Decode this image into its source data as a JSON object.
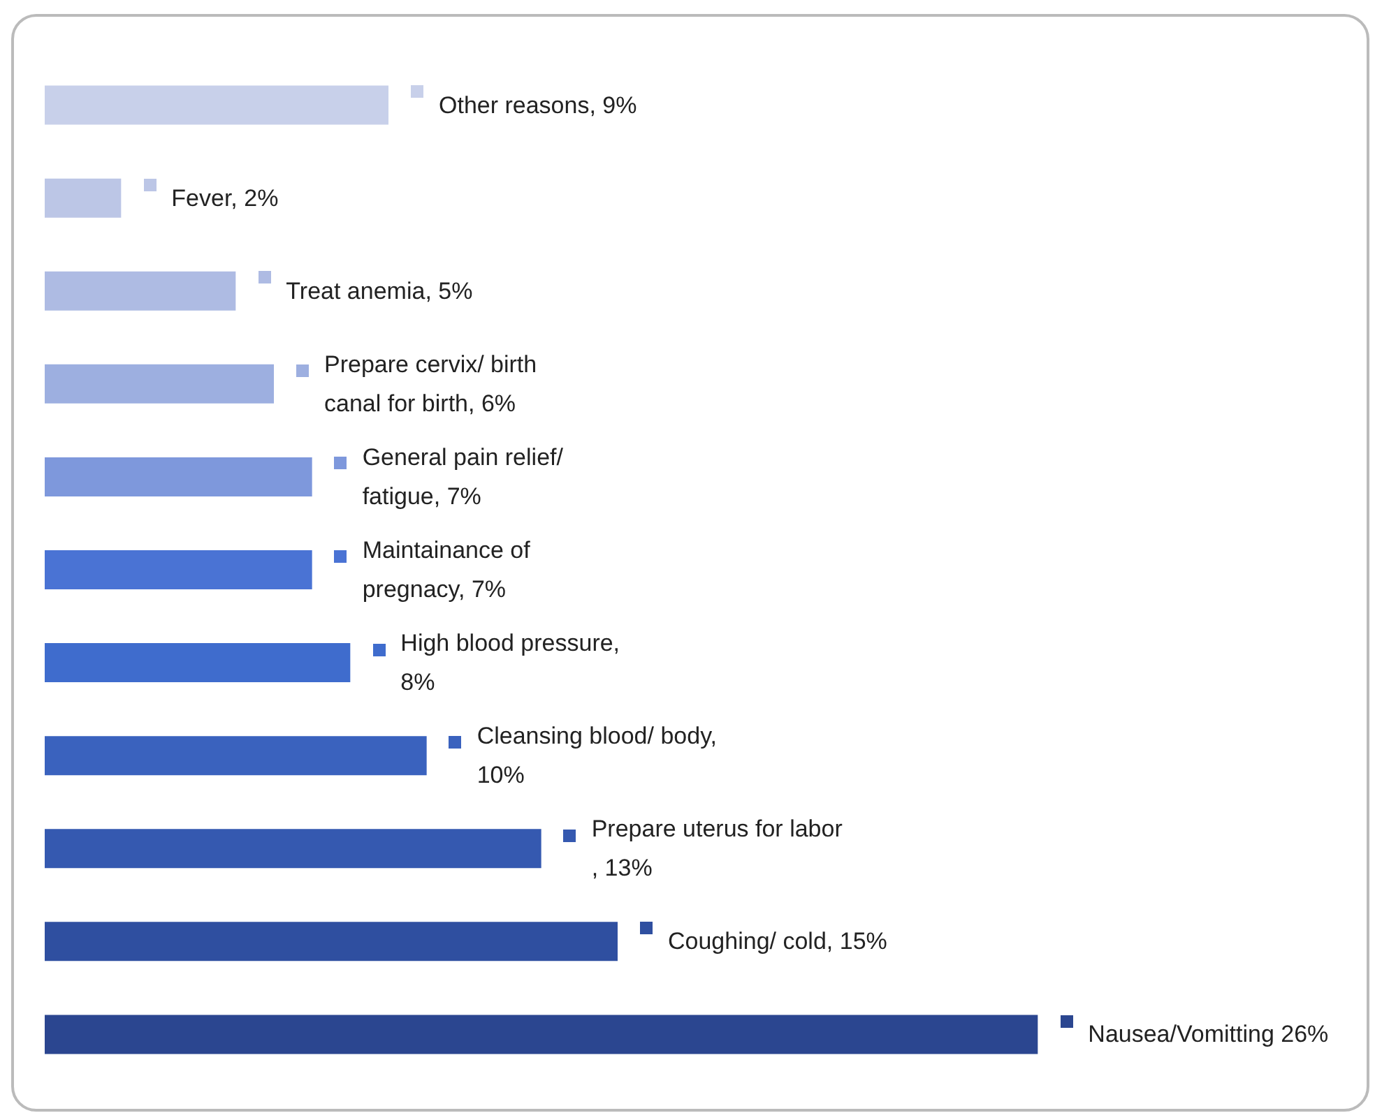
{
  "chart_data": {
    "type": "bar",
    "orientation": "horizontal",
    "categories": [
      null,
      null,
      null,
      null,
      null,
      null,
      null,
      null,
      null,
      null,
      null
    ],
    "values": [
      9,
      2,
      5,
      6,
      7,
      7,
      8,
      10,
      13,
      15,
      26
    ],
    "value_labels": [
      "Other reasons, 9%",
      "Fever, 2%",
      "Treat anemia, 5%",
      "Prepare cervix/ birth canal for birth, 6%",
      "General pain relief/fatigue, 7%",
      "Maintainance of pregnacy, 7%",
      "High blood pressure, 8%",
      "Cleansing blood/ body, 10%",
      "Prepare uterus for labor, 13%",
      "Coughing/ cold, 15%",
      "Nausea/Vomitting 26%"
    ],
    "colors": [
      "#c8d0ea",
      "#bcc6e6",
      "#aebbe3",
      "#9dafe0",
      "#7e98dc",
      "#4a73d4",
      "#3f6ccd",
      "#3a62be",
      "#3559b0",
      "#2f4fa0",
      "#2b4690"
    ]
  }
}
